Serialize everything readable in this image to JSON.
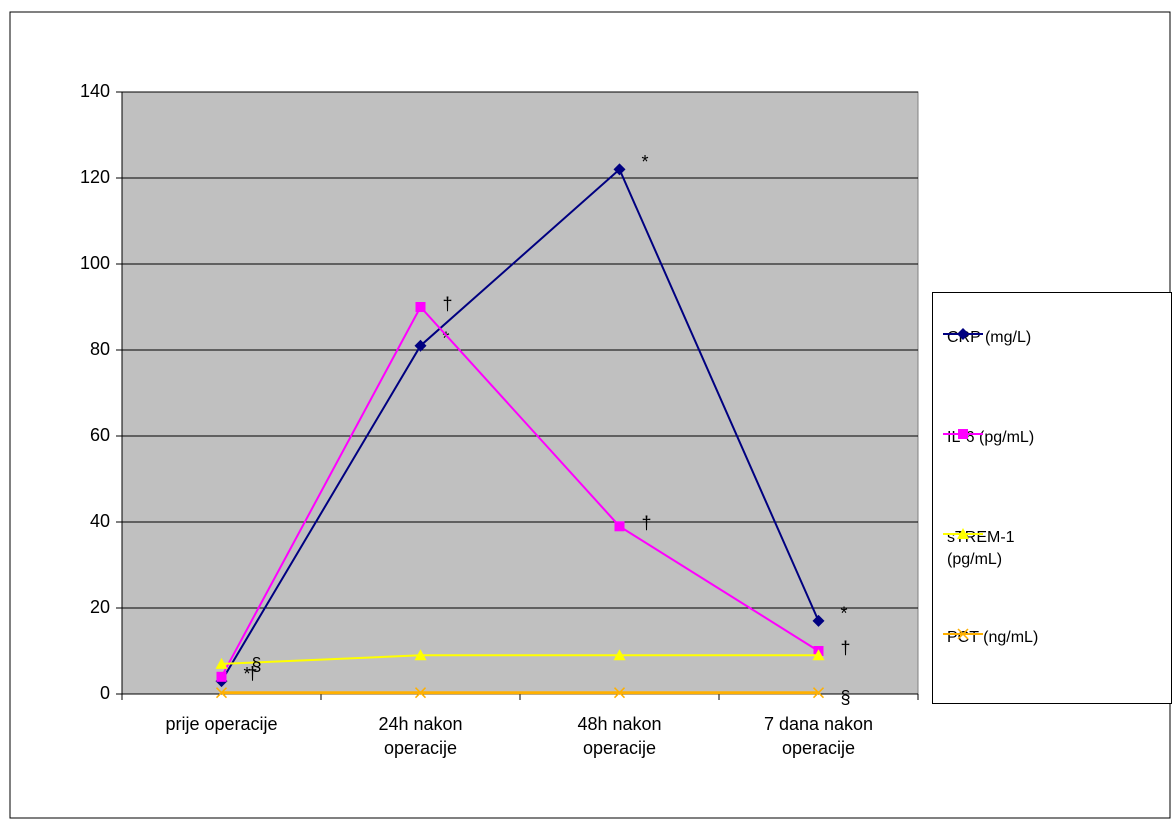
{
  "chart_data": {
    "type": "line",
    "categories": [
      "prije operacije",
      "24h nakon operacije",
      "48h nakon operacije",
      "7 dana nakon operacije"
    ],
    "series": [
      {
        "name": "CRP (mg/L)",
        "color": "#000080",
        "marker": "diamond",
        "values": [
          3,
          81,
          122,
          17
        ],
        "point_labels": [
          "*",
          "*",
          "*",
          "*"
        ]
      },
      {
        "name": "IL-6 (pg/mL)",
        "color": "#FF00FF",
        "marker": "square",
        "values": [
          4,
          90,
          39,
          10
        ],
        "point_labels": [
          "†",
          "†",
          "†",
          "†"
        ]
      },
      {
        "name": "sTREM-1 (pg/mL)",
        "color": "#FFFF00",
        "marker": "triangle",
        "values": [
          7,
          9,
          9,
          9
        ],
        "point_labels": [
          "§",
          null,
          null,
          null
        ]
      },
      {
        "name": "PCT (ng/mL)",
        "color": "#FFB000",
        "marker": "x",
        "values": [
          0.3,
          0.3,
          0.3,
          0.3
        ],
        "point_labels": [
          null,
          null,
          null,
          "§"
        ]
      }
    ],
    "ylim": [
      0,
      140
    ],
    "yticks": [
      0,
      20,
      40,
      60,
      80,
      100,
      120,
      140
    ],
    "grid": true,
    "legend": "right"
  }
}
